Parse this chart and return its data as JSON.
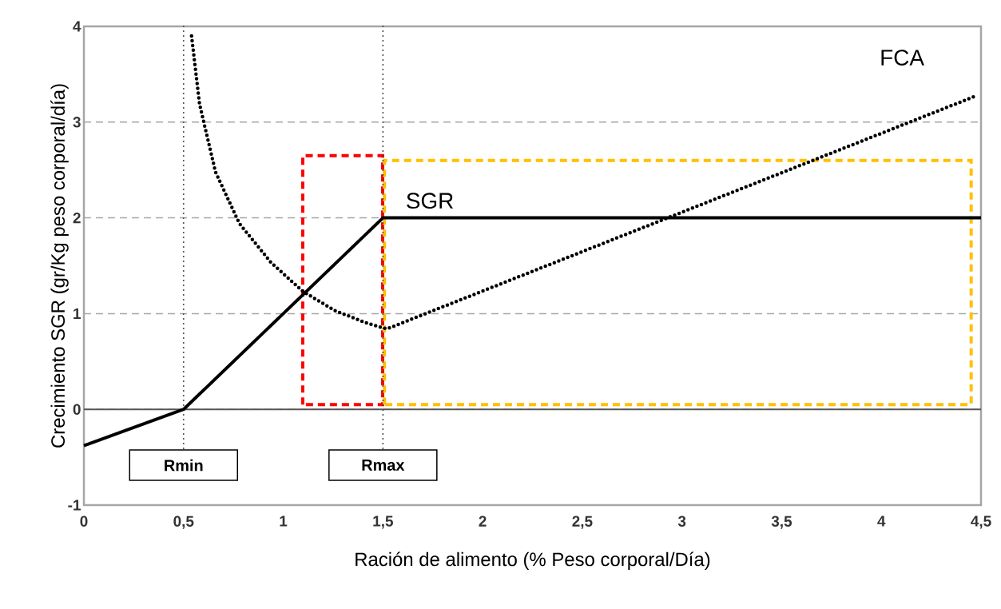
{
  "chart_data": {
    "type": "line",
    "xlabel": "Ración de alimento (% Peso corporal/Día)",
    "ylabel": "Crecimiento SGR (gr/Kg peso corporal/día)",
    "xlim": [
      0,
      4.5
    ],
    "ylim": [
      -1,
      4
    ],
    "xticks": [
      0,
      {
        "value": 0.5,
        "label": "0,5"
      },
      1,
      {
        "value": 1.5,
        "label": "1,5"
      },
      2,
      {
        "value": 2.5,
        "label": "2,5"
      },
      3,
      {
        "value": 3.5,
        "label": "3,5"
      },
      4,
      {
        "value": 4.5,
        "label": "4,5"
      }
    ],
    "yticks": [
      -1,
      0,
      1,
      2,
      3,
      4
    ],
    "grid": "y",
    "marker": "none",
    "series": [
      {
        "name": "SGR",
        "color": "#000000",
        "line_style": "solid",
        "x": [
          0,
          0.5,
          1.5,
          4.5
        ],
        "values": [
          -0.38,
          0,
          2,
          2
        ]
      },
      {
        "name": "FCA",
        "color": "#000000",
        "line_style": "dotted",
        "x": [
          0.54,
          0.58,
          0.66,
          0.78,
          0.94,
          1.1,
          1.26,
          1.42,
          1.52,
          4.47
        ],
        "values": [
          3.9,
          3.19,
          2.48,
          1.94,
          1.53,
          1.23,
          1.03,
          0.9,
          0.84,
          3.27
        ]
      }
    ],
    "ref_lines": [
      {
        "axis": "y",
        "value": 0,
        "color": "#555555",
        "line_style": "solid"
      },
      {
        "axis": "x",
        "value": 0.5,
        "label": "Rmin",
        "color": "#444444",
        "line_style": "dotted"
      },
      {
        "axis": "x",
        "value": 1.5,
        "label": "Rmax",
        "color": "#444444",
        "line_style": "dotted"
      }
    ]
  }
}
